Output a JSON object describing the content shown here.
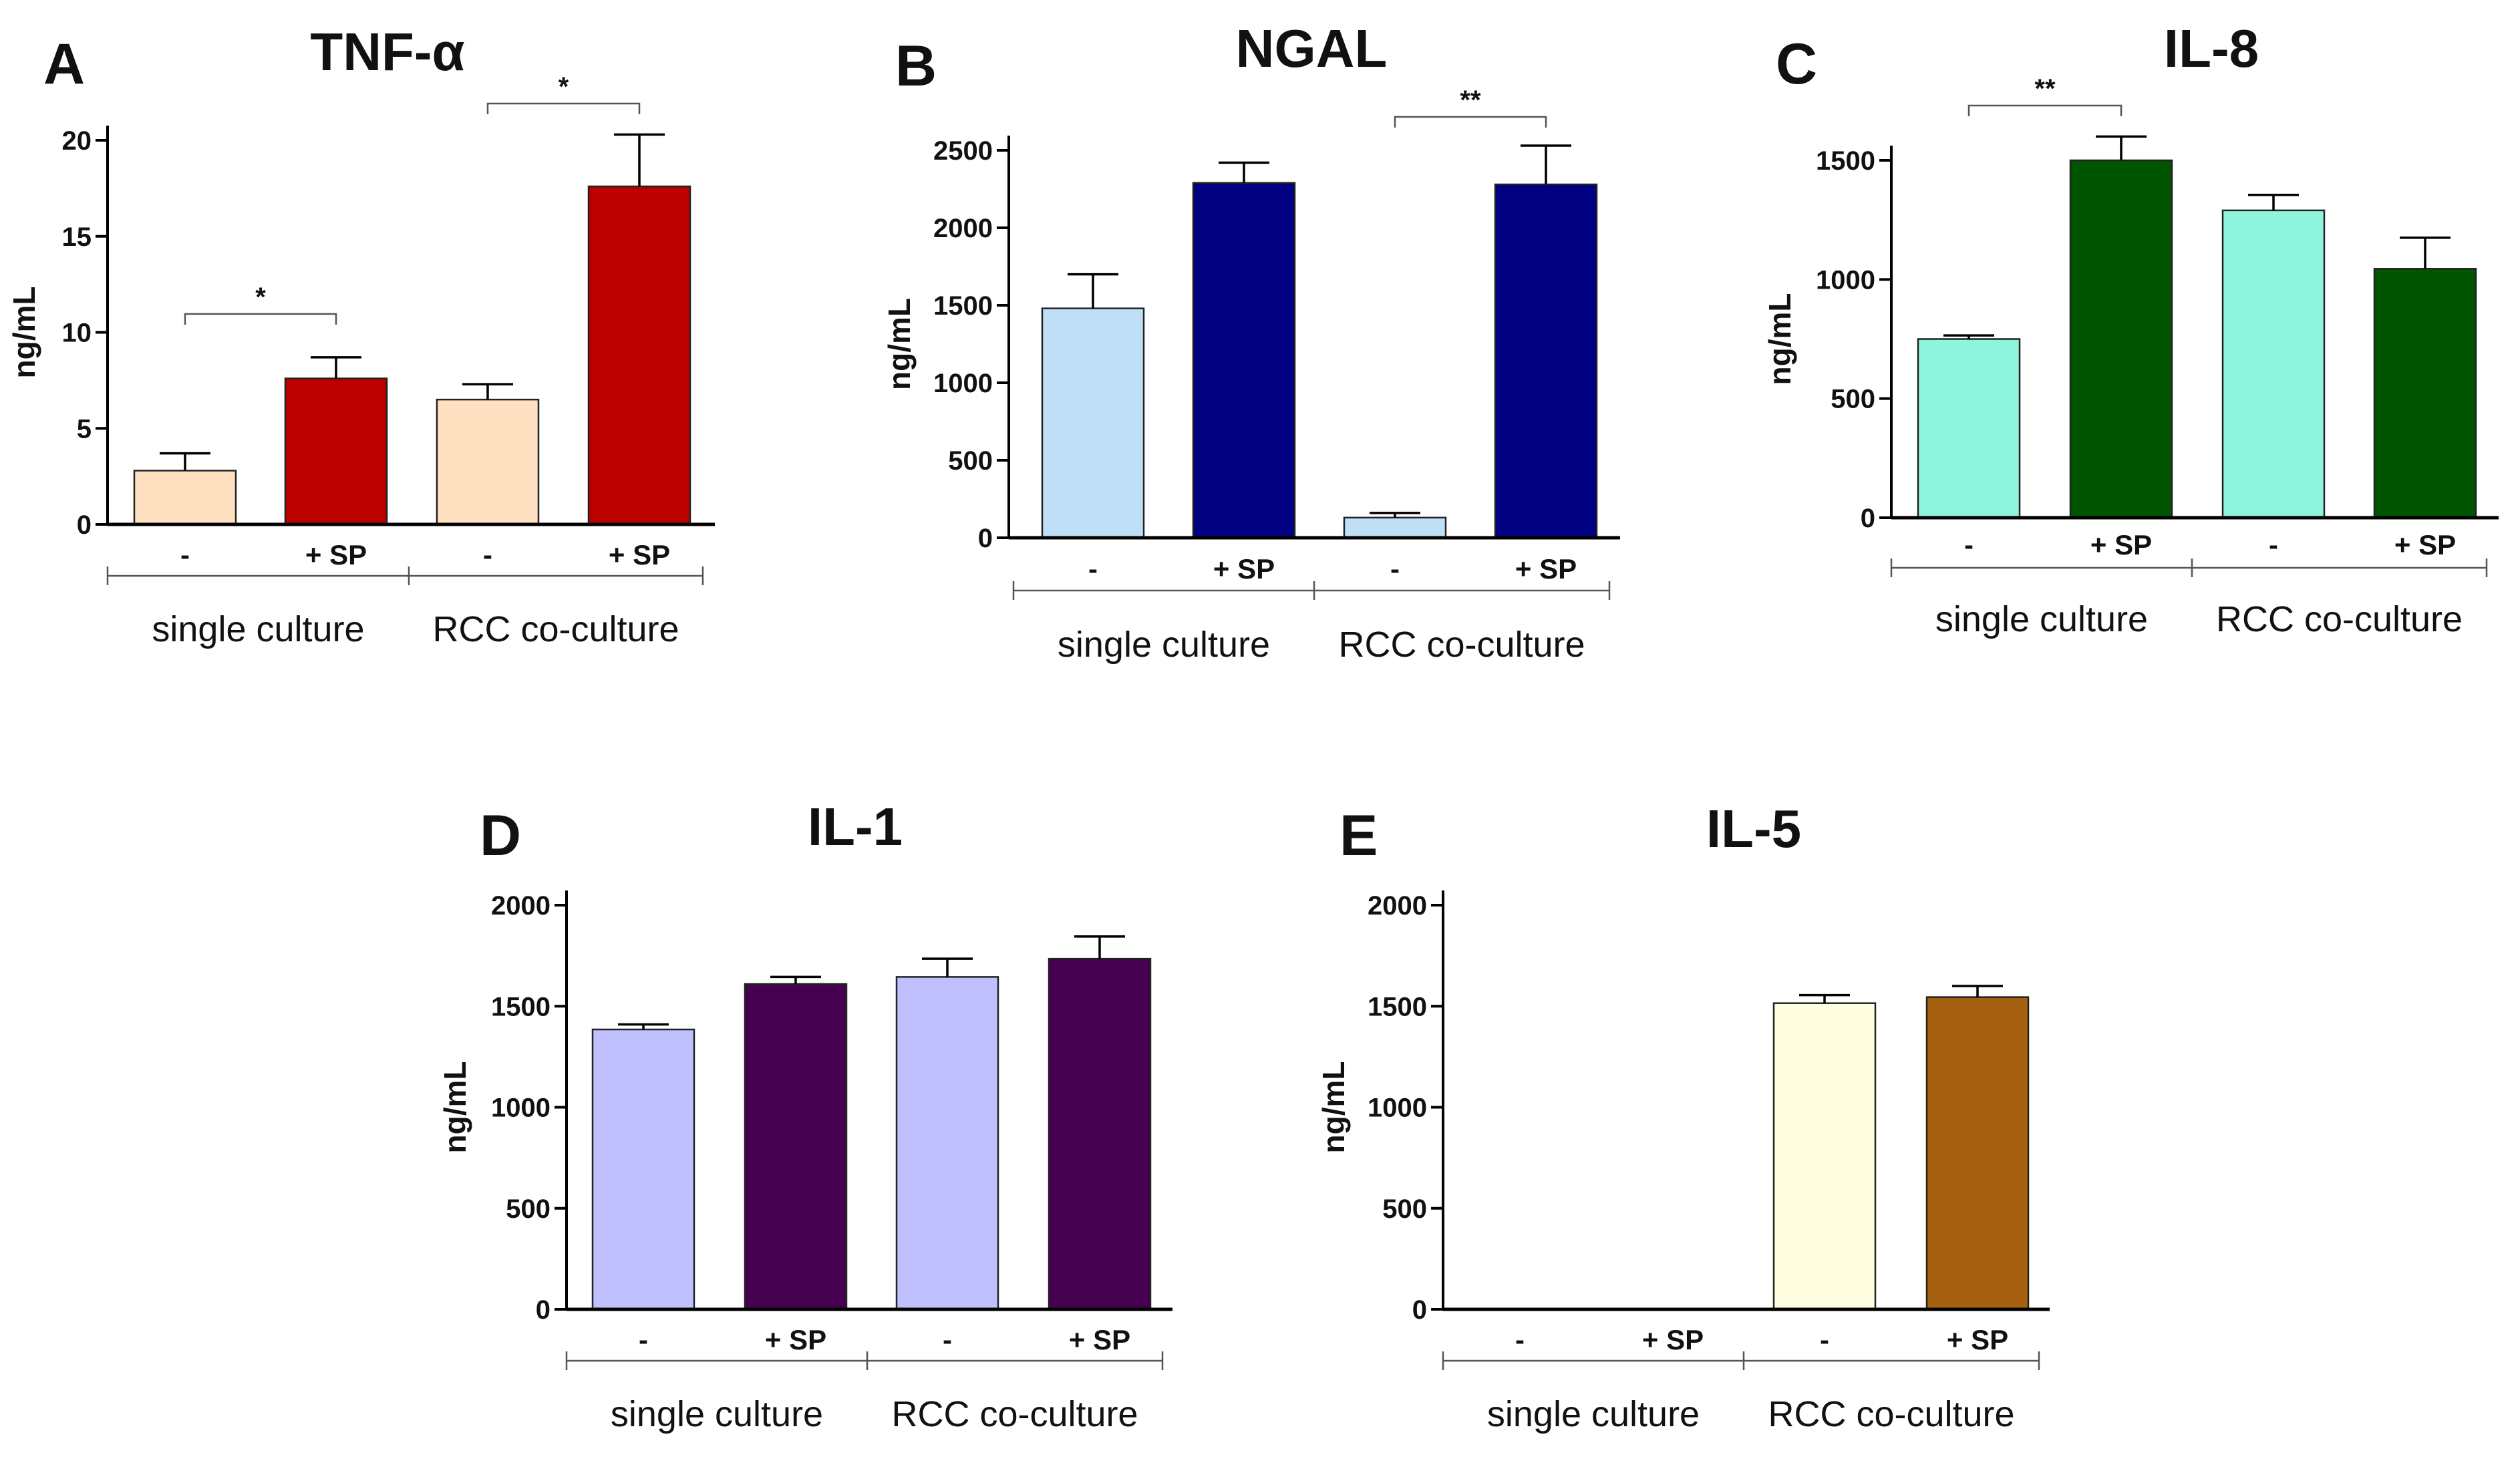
{
  "chart_data": [
    {
      "panel": "A",
      "type": "bar",
      "title": "TNF-α",
      "ylabel": "ng/mL",
      "ylim": [
        0,
        20
      ],
      "yticks": [
        0,
        5,
        10,
        15,
        20
      ],
      "categories": [
        "-",
        "+ SP",
        "-",
        "+ SP"
      ],
      "groups": [
        "single culture",
        "RCC co-culture"
      ],
      "values": [
        2.8,
        7.6,
        6.5,
        17.6
      ],
      "errors": [
        0.9,
        1.1,
        0.8,
        2.7
      ],
      "colors": [
        "#ffe0c0",
        "#bb0000",
        "#ffe0c0",
        "#bb0000"
      ],
      "significance": [
        {
          "bars": [
            0,
            1
          ],
          "label": "*"
        },
        {
          "bars": [
            2,
            3
          ],
          "label": "*"
        }
      ]
    },
    {
      "panel": "B",
      "type": "bar",
      "title": "NGAL",
      "ylabel": "ng/mL",
      "ylim": [
        0,
        2500
      ],
      "yticks": [
        0,
        500,
        1000,
        1500,
        2000,
        2500
      ],
      "categories": [
        "-",
        "+ SP",
        "-",
        "+ SP"
      ],
      "groups": [
        "single culture",
        "RCC co-culture"
      ],
      "values": [
        1480,
        2290,
        130,
        2280
      ],
      "errors": [
        220,
        130,
        30,
        250
      ],
      "colors": [
        "#bfdff7",
        "#000080",
        "#bfdff7",
        "#000080"
      ],
      "significance": [
        {
          "bars": [
            2,
            3
          ],
          "label": "**"
        }
      ]
    },
    {
      "panel": "C",
      "type": "bar",
      "title": "IL-8",
      "ylabel": "ng/mL",
      "ylim": [
        0,
        1500
      ],
      "yticks": [
        0,
        500,
        1000,
        1500
      ],
      "categories": [
        "-",
        "+ SP",
        "-",
        "+ SP"
      ],
      "groups": [
        "single culture",
        "RCC co-culture"
      ],
      "values": [
        750,
        1500,
        1290,
        1045
      ],
      "errors": [
        15,
        100,
        65,
        130
      ],
      "colors": [
        "#8ef5dc",
        "#005500",
        "#8ef5dc",
        "#005500"
      ],
      "significance": [
        {
          "bars": [
            0,
            1
          ],
          "label": "**"
        }
      ]
    },
    {
      "panel": "D",
      "type": "bar",
      "title": "IL-1",
      "ylabel": "ng/mL",
      "ylim": [
        0,
        2000
      ],
      "yticks": [
        0,
        500,
        1000,
        1500,
        2000
      ],
      "categories": [
        "-",
        "+ SP",
        "-",
        "+ SP"
      ],
      "groups": [
        "single culture",
        "RCC co-culture"
      ],
      "values": [
        1385,
        1610,
        1645,
        1735
      ],
      "errors": [
        25,
        35,
        90,
        110
      ],
      "colors": [
        "#c0c0ff",
        "#450050",
        "#c0c0ff",
        "#450050"
      ],
      "significance": []
    },
    {
      "panel": "E",
      "type": "bar",
      "title": "IL-5",
      "ylabel": "ng/mL",
      "ylim": [
        0,
        2000
      ],
      "yticks": [
        0,
        500,
        1000,
        1500,
        2000
      ],
      "categories": [
        "-",
        "+ SP",
        "-",
        "+ SP"
      ],
      "groups": [
        "single culture",
        "RCC co-culture"
      ],
      "values": [
        0,
        0,
        1515,
        1545
      ],
      "errors": [
        0,
        0,
        40,
        55
      ],
      "colors": [
        "#fffde0",
        "#a56010",
        "#fffde0",
        "#a56010"
      ],
      "significance": []
    }
  ]
}
